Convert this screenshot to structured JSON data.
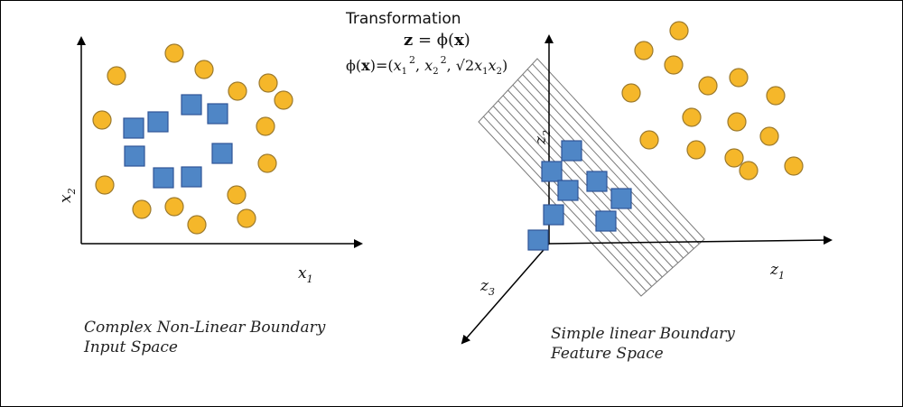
{
  "title": "Transformation",
  "equation_lhs": "z",
  "equation_eq": " = ",
  "equation_rhs_fn": "ϕ(",
  "equation_rhs_arg": "x",
  "equation_rhs_close": ")",
  "mapping": {
    "prefix": "ϕ(",
    "bold_x": "x",
    "mid": ")=(",
    "x1": "x",
    "sub1": "1",
    "sup1": "2",
    "comma1": ", ",
    "x2": "x",
    "sub2": "2",
    "sup2": "2",
    "comma2": ", √2",
    "x3": "x",
    "sub3": "1",
    "x4": "x",
    "sub4": "2",
    "close": ")"
  },
  "left_panel": {
    "x_axis_label": "x",
    "x_axis_sub": "1",
    "y_axis_label": "x",
    "y_axis_sub": "2",
    "caption_line1": "Complex Non-Linear Boundary",
    "caption_line2": "Input Space"
  },
  "right_panel": {
    "z1_label": "z",
    "z1_sub": "1",
    "z2_label": "z",
    "z2_sub": "2",
    "z3_label": "z",
    "z3_sub": "3",
    "caption_line1": "Simple linear Boundary",
    "caption_line2": "Feature Space"
  },
  "colors": {
    "circle_fill": "#F5B72A",
    "circle_stroke": "#9C7A2E",
    "square_fill": "#4F86C6",
    "square_stroke": "#2F5597",
    "plane_stroke": "#7a7a7a",
    "axis": "#000000"
  },
  "markers": {
    "left_circles": 20,
    "left_squares": 10,
    "right_circles": 16,
    "right_squares": 10
  }
}
